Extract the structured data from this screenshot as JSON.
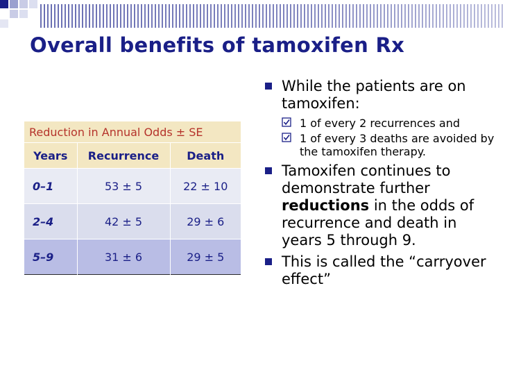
{
  "slide": {
    "title": "Overall benefits of tamoxifen Rx",
    "accent_color": "#1a1f87"
  },
  "table": {
    "caption": "Reduction in Annual Odds ± SE",
    "headers": [
      "Years",
      "Recurrence",
      "Death"
    ],
    "rows": [
      [
        "0–1",
        "53 ± 5",
        "22 ± 10"
      ],
      [
        "2–4",
        "42 ± 5",
        "29 ± 6"
      ],
      [
        "5–9",
        "31 ± 6",
        "29 ± 5"
      ]
    ]
  },
  "bullets": {
    "b1": "While the patients are on tamoxifen:",
    "b1_sub": [
      "1 of every 2 recurrences and",
      "1 of every 3 deaths are avoided by the tamoxifen therapy."
    ],
    "b2_pre": "Tamoxifen continues to demonstrate further",
    "b2_bold": "reductions",
    "b2_post": "in the odds of recurrence and death in years 5 through 9.",
    "b3": "This is called the “carryover effect”"
  }
}
